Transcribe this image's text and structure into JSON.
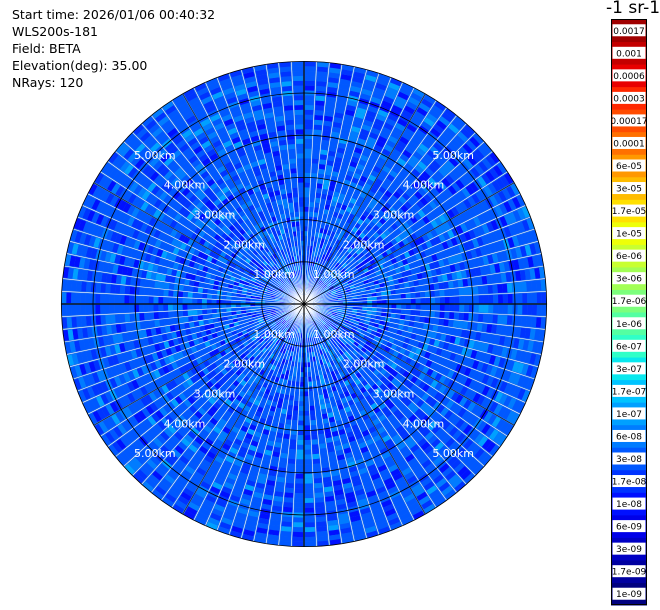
{
  "header": {
    "start_time": "Start time: 2026/01/06 00:40:32",
    "instrument": "WLS200s-181",
    "field": "Field: BETA",
    "elevation": "Elevation(deg): 35.00",
    "nrays": "NRays: 120"
  },
  "colorbar": {
    "title": "-1 sr-1",
    "levels": [
      "1e-09",
      "1.7e-09",
      "3e-09",
      "6e-09",
      "1e-08",
      "1.7e-08",
      "3e-08",
      "6e-08",
      "1e-07",
      "1.7e-07",
      "3e-07",
      "6e-07",
      "1e-06",
      "1.7e-06",
      "3e-06",
      "6e-06",
      "1e-05",
      "1.7e-05",
      "3e-05",
      "6e-05",
      "0.0001",
      "0.00017",
      "0.0003",
      "0.0006",
      "0.001",
      "0.0017"
    ],
    "colors": [
      "#000080",
      "#0000a0",
      "#0000c4",
      "#0000e8",
      "#0010ff",
      "#0034ff",
      "#0058ff",
      "#007cff",
      "#00a0ff",
      "#00c4ff",
      "#08e8ee",
      "#30ffc8",
      "#54ffa2",
      "#7cff7c",
      "#a2ff54",
      "#c8ff30",
      "#eeff08",
      "#ffe000",
      "#ffbc00",
      "#ff9800",
      "#ff7000",
      "#ff4c00",
      "#ff2800",
      "#e80000",
      "#c40000",
      "#a00000"
    ]
  },
  "chart_data": {
    "type": "heatmap",
    "projection": "polar PPI",
    "field": "BETA",
    "nrays": 120,
    "azimuth_step_deg": 3,
    "range_rings_km": [
      1,
      2,
      3,
      4,
      5
    ],
    "ring_labels": [
      "1.00km",
      "2.00km",
      "3.00km",
      "4.00km",
      "5.00km"
    ],
    "max_range_km": 5.75,
    "typical_value_range": [
      "1e-08",
      "6e-08"
    ]
  }
}
